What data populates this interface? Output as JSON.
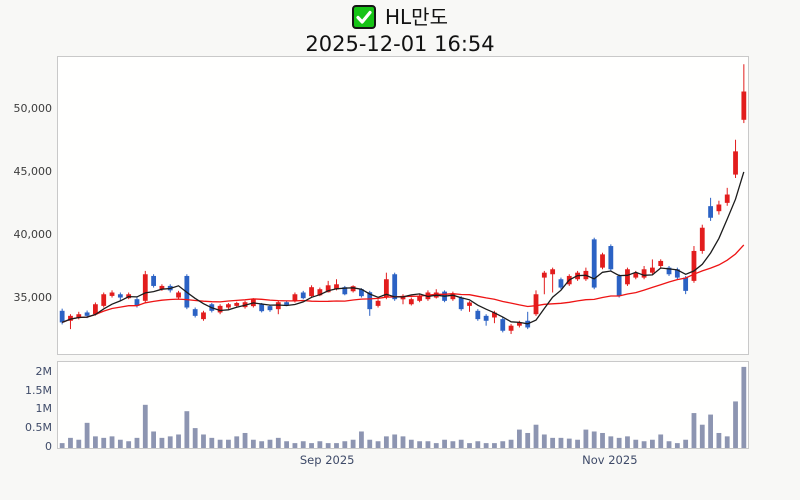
{
  "chart_data": {
    "type": "candlestick_with_volume",
    "title": "HL만도",
    "subtitle": "2025-12-01 16:54",
    "legend": "none",
    "grid": false,
    "ylim": [
      30658,
      54184
    ],
    "vol_ylim": [
      0,
      2290000
    ],
    "price_axis": {
      "ticks": [
        35000,
        40000,
        45000,
        50000
      ],
      "labels": [
        "35,000",
        "40,000",
        "45,000",
        "50,000"
      ]
    },
    "volume_axis": {
      "ticks": [
        0,
        500000,
        1000000,
        1500000,
        2000000
      ],
      "labels": [
        "0",
        "0.5M",
        "1M",
        "1.5M",
        "2M"
      ]
    },
    "x_tick_labels": [
      {
        "index": 32,
        "label": "Sep 2025"
      },
      {
        "index": 66,
        "label": "Nov 2025"
      }
    ],
    "ma_short_period": 5,
    "ma_long_period": 20,
    "candles": {
      "open": [
        34080,
        33290,
        33550,
        33950,
        33810,
        34470,
        35260,
        35390,
        35080,
        35000,
        34870,
        36840,
        35790,
        36050,
        35130,
        36840,
        34210,
        33420,
        34600,
        33950,
        34340,
        34470,
        34370,
        34450,
        34600,
        34450,
        34210,
        34760,
        34840,
        35530,
        35240,
        35310,
        35550,
        35790,
        35950,
        35630,
        35790,
        35550,
        34470,
        35130,
        36975,
        34990,
        34600,
        34870,
        35000,
        35130,
        35600,
        35000,
        35130,
        34470,
        34080,
        33680,
        33550,
        33420,
        32500,
        32900,
        33290,
        33810,
        36710,
        36975,
        36580,
        36180,
        36580,
        36580,
        39740,
        37500,
        39210,
        36840,
        36180,
        36710,
        36710,
        37100,
        37630,
        37500,
        37370,
        36710,
        36450,
        38820,
        42370,
        41970,
        42630,
        44870,
        49210
      ],
      "high": [
        34250,
        33810,
        34000,
        34100,
        34740,
        35530,
        35700,
        35530,
        35530,
        35130,
        37240,
        36975,
        36180,
        36180,
        35660,
        36975,
        34340,
        34080,
        34700,
        34600,
        34700,
        34800,
        34870,
        35080,
        34700,
        34550,
        34870,
        34870,
        35530,
        35660,
        36100,
        35920,
        36450,
        36580,
        36050,
        36100,
        35870,
        35660,
        35000,
        37100,
        37100,
        35390,
        35130,
        35390,
        35700,
        35790,
        35700,
        35600,
        35240,
        34840,
        34210,
        33810,
        34080,
        33550,
        33030,
        33290,
        34000,
        35700,
        37240,
        37500,
        36710,
        36975,
        37240,
        37500,
        39870,
        38680,
        39340,
        36975,
        37500,
        37240,
        37630,
        38150,
        38160,
        37630,
        37500,
        36840,
        39210,
        40900,
        43030,
        42800,
        43820,
        47630,
        53610
      ],
      "low": [
        33000,
        32630,
        33400,
        33500,
        33700,
        34340,
        35130,
        34870,
        35000,
        34340,
        34740,
        35920,
        35660,
        35530,
        35000,
        34210,
        33550,
        33290,
        33950,
        33810,
        34210,
        34340,
        34250,
        34340,
        33950,
        34000,
        33810,
        34450,
        34740,
        35000,
        35130,
        35240,
        35530,
        35700,
        35310,
        35530,
        35130,
        33680,
        34340,
        35000,
        34870,
        34600,
        34500,
        34760,
        34870,
        35050,
        34760,
        34870,
        34080,
        34000,
        33290,
        32900,
        33100,
        32370,
        32240,
        32760,
        32630,
        33680,
        35390,
        35530,
        35790,
        36050,
        36450,
        36450,
        35790,
        37370,
        37240,
        35130,
        36050,
        36580,
        36580,
        36975,
        37500,
        36840,
        36580,
        35400,
        36300,
        38600,
        41200,
        41700,
        42400,
        44600,
        48950
      ],
      "close": [
        33160,
        33680,
        33810,
        33680,
        34600,
        35390,
        35530,
        35130,
        35390,
        34470,
        36975,
        36050,
        36050,
        35700,
        35530,
        34340,
        33680,
        33950,
        34080,
        34470,
        34600,
        34700,
        34760,
        35000,
        34050,
        34130,
        34760,
        34550,
        35390,
        35080,
        35950,
        35790,
        36100,
        36180,
        35390,
        36030,
        35240,
        34210,
        34870,
        36580,
        35000,
        35260,
        35000,
        35260,
        35530,
        35530,
        34870,
        35390,
        34210,
        34740,
        33420,
        33290,
        33940,
        32500,
        32900,
        33160,
        32760,
        35390,
        37100,
        37370,
        35920,
        36840,
        37100,
        37240,
        35920,
        38550,
        37370,
        35260,
        37370,
        37100,
        37370,
        37500,
        38030,
        36975,
        36710,
        35660,
        38820,
        40660,
        41450,
        42500,
        43290,
        46710,
        51450
      ],
      "volume": [
        130000,
        270000,
        220000,
        670000,
        310000,
        270000,
        310000,
        220000,
        180000,
        270000,
        1150000,
        440000,
        270000,
        310000,
        360000,
        980000,
        530000,
        360000,
        270000,
        220000,
        220000,
        310000,
        400000,
        220000,
        180000,
        220000,
        270000,
        180000,
        130000,
        180000,
        130000,
        180000,
        130000,
        130000,
        180000,
        220000,
        440000,
        220000,
        180000,
        310000,
        360000,
        310000,
        220000,
        180000,
        180000,
        130000,
        220000,
        180000,
        220000,
        130000,
        180000,
        130000,
        130000,
        180000,
        220000,
        490000,
        400000,
        620000,
        360000,
        270000,
        270000,
        250000,
        220000,
        490000,
        440000,
        400000,
        310000,
        270000,
        310000,
        220000,
        180000,
        220000,
        360000,
        180000,
        130000,
        220000,
        930000,
        620000,
        890000,
        400000,
        310000,
        1240000,
        2160000
      ]
    },
    "colors": {
      "up": "#e21d1d",
      "down": "#2b62c4",
      "ma_short": "#1c1c1c",
      "ma_long": "#ee1414",
      "volume_bar": "#8d95b1",
      "plot_bg": "#fffffe",
      "page_bg": "#f8f8f6",
      "checkbox_green": "#16c316"
    }
  }
}
